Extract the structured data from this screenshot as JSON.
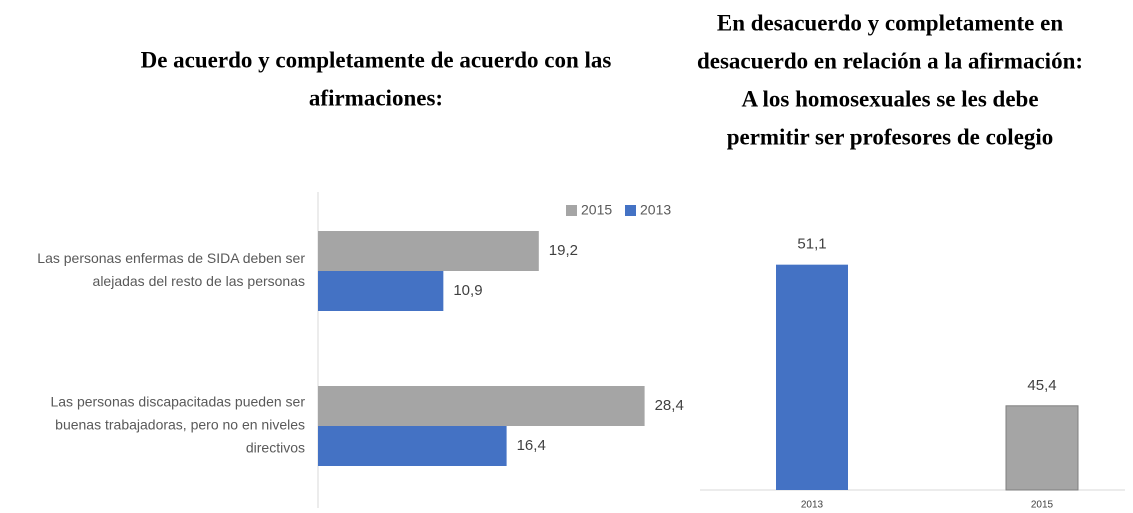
{
  "chart_data": [
    {
      "type": "hbar",
      "title": [
        "De acuerdo y completamente de acuerdo con las",
        "afirmaciones:"
      ],
      "categories": [
        [
          "Las personas enfermas de SIDA deben ser",
          "alejadas del resto de las personas"
        ],
        [
          "Las personas discapacitadas pueden ser",
          "buenas trabajadoras, pero no en niveles",
          "directivos"
        ]
      ],
      "series": [
        {
          "name": "2015",
          "color": "#a5a5a5",
          "values": [
            19.2,
            28.4
          ],
          "value_labels": [
            "19,2",
            "28,4"
          ]
        },
        {
          "name": "2013",
          "color": "#4472c4",
          "values": [
            10.9,
            16.4
          ],
          "value_labels": [
            "10,9",
            "16,4"
          ]
        }
      ],
      "xlim": [
        0,
        30
      ],
      "legend": "top-right"
    },
    {
      "type": "bar",
      "title": [
        "En desacuerdo y completamente en",
        "desacuerdo en relación a la afirmación:",
        "A los homosexuales se les debe",
        "permitir ser profesores de colegio"
      ],
      "categories": [
        "2013",
        "2015"
      ],
      "values": [
        51.1,
        45.4
      ],
      "value_labels": [
        "51,1",
        "45,4"
      ],
      "colors": [
        "#4472c4",
        "#a5a5a5"
      ],
      "ylim": [
        42,
        52.5
      ]
    }
  ]
}
